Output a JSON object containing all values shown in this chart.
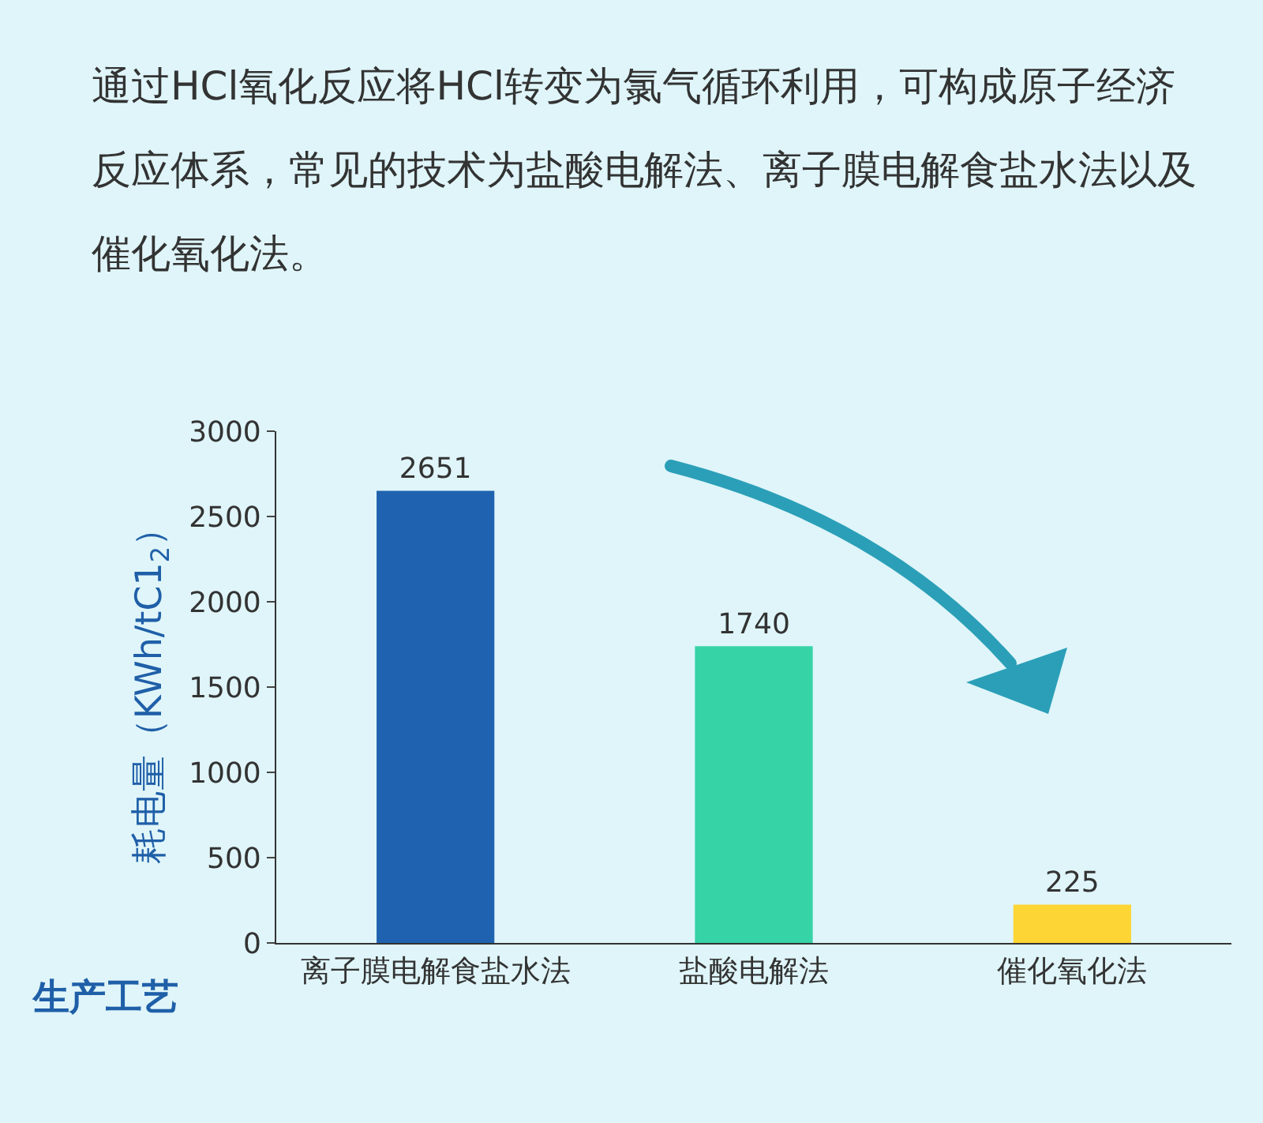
{
  "chart_data": {
    "type": "bar",
    "title": "通过HCl氧化反应将HCl转变为氯气循环利用，可构成原子经济反应体系，常见的技术为盐酸电解法、离子膜电解食盐水法以及催化氧化法。",
    "categories": [
      "离子膜电解食盐水法",
      "盐酸电解法",
      "催化氧化法"
    ],
    "values": [
      2651,
      1740,
      225
    ],
    "colors": [
      "#1f63b0",
      "#36d3a6",
      "#fdd535"
    ],
    "ylabel": "耗电量（KWh/tC1$_{2}$）",
    "xlabel": "生产工艺",
    "ylim": [
      0,
      3000
    ],
    "yticks": [
      0,
      500,
      1000,
      1500,
      2000,
      2500,
      3000
    ],
    "data_labels": true
  }
}
